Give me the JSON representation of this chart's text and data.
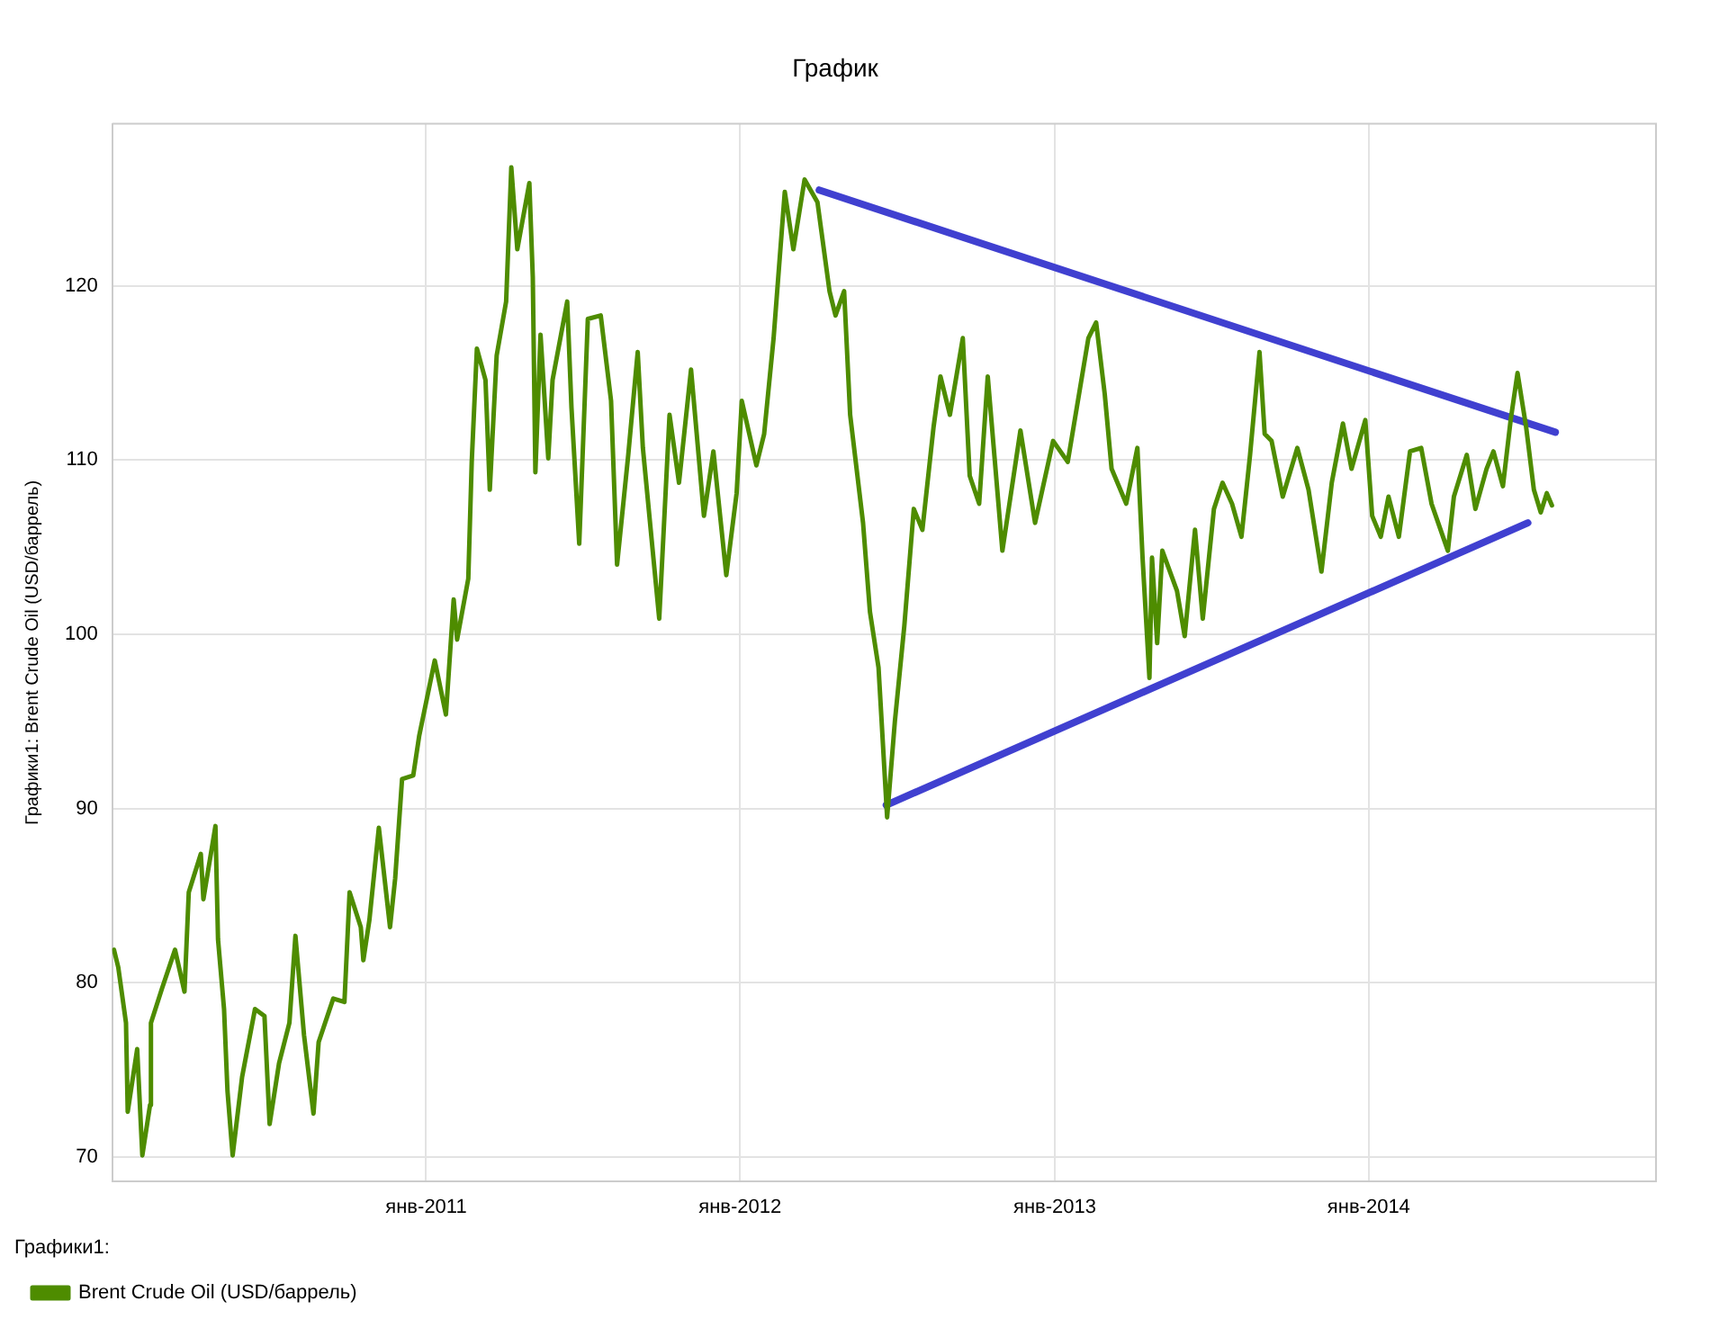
{
  "chart_data": {
    "type": "line",
    "title": "График",
    "ylabel": "Графики1: Brent Crude Oil (USD/баррель)",
    "legend_title": "Графики1:",
    "legend": "bottom left",
    "grid": true,
    "marker": "none",
    "line_style": "solid",
    "xlim": [
      "2010-01-01",
      "2014-12-01"
    ],
    "xticks": [
      {
        "value": "2011-01-01",
        "label": "янв-2011"
      },
      {
        "value": "2012-01-01",
        "label": "янв-2012"
      },
      {
        "value": "2013-01-01",
        "label": "янв-2013"
      },
      {
        "value": "2014-01-01",
        "label": "янв-2014"
      }
    ],
    "ylim": [
      68.6,
      129.3
    ],
    "yticks": [
      70,
      80,
      90,
      100,
      110,
      120
    ],
    "series": [
      {
        "name": "Brent Crude Oil (USD/баррель)",
        "color": "#4e8c00",
        "x": [
          "2010-01-03",
          "2010-01-08",
          "2010-01-17",
          "2010-01-19",
          "2010-01-30",
          "2010-02-05",
          "2010-02-14",
          "2010-02-15",
          "2010-02-28",
          "2010-03-15",
          "2010-03-26",
          "2010-03-31",
          "2010-04-14",
          "2010-04-17",
          "2010-05-01",
          "2010-05-04",
          "2010-05-11",
          "2010-05-15",
          "2010-05-21",
          "2010-06-01",
          "2010-06-16",
          "2010-06-27",
          "2010-07-03",
          "2010-07-14",
          "2010-07-26",
          "2010-08-02",
          "2010-08-12",
          "2010-08-23",
          "2010-08-29",
          "2010-09-15",
          "2010-09-28",
          "2010-10-04",
          "2010-10-17",
          "2010-10-20",
          "2010-10-27",
          "2010-11-07",
          "2010-11-20",
          "2010-11-26",
          "2010-12-04",
          "2010-12-17",
          "2010-12-24",
          "2011-01-11",
          "2011-01-24",
          "2011-02-02",
          "2011-02-06",
          "2011-02-19",
          "2011-02-23",
          "2011-03-01",
          "2011-03-11",
          "2011-03-16",
          "2011-03-24",
          "2011-04-04",
          "2011-04-10",
          "2011-04-17",
          "2011-05-01",
          "2011-05-05",
          "2011-05-08",
          "2011-05-14",
          "2011-05-23",
          "2011-05-28",
          "2011-06-14",
          "2011-06-19",
          "2011-06-28",
          "2011-07-08",
          "2011-07-23",
          "2011-08-04",
          "2011-08-11",
          "2011-08-24",
          "2011-09-04",
          "2011-09-10",
          "2011-09-29",
          "2011-10-11",
          "2011-10-22",
          "2011-11-05",
          "2011-11-20",
          "2011-12-01",
          "2011-12-16",
          "2011-12-28",
          "2012-01-03",
          "2012-01-20",
          "2012-01-29",
          "2012-02-09",
          "2012-02-22",
          "2012-03-03",
          "2012-03-16",
          "2012-03-31",
          "2012-04-14",
          "2012-04-21",
          "2012-05-01",
          "2012-05-08",
          "2012-05-23",
          "2012-05-31",
          "2012-06-10",
          "2012-06-20",
          "2012-06-29",
          "2012-07-10",
          "2012-07-21",
          "2012-07-31",
          "2012-08-13",
          "2012-08-21",
          "2012-09-01",
          "2012-09-16",
          "2012-09-24",
          "2012-10-05",
          "2012-10-15",
          "2012-11-01",
          "2012-11-22",
          "2012-12-09",
          "2012-12-30",
          "2013-01-16",
          "2013-02-09",
          "2013-02-18",
          "2013-02-28",
          "2013-03-08",
          "2013-03-25",
          "2013-04-07",
          "2013-04-13",
          "2013-04-21",
          "2013-04-24",
          "2013-04-30",
          "2013-05-06",
          "2013-05-23",
          "2013-06-01",
          "2013-06-13",
          "2013-06-22",
          "2013-07-05",
          "2013-07-15",
          "2013-07-26",
          "2013-08-06",
          "2013-08-16",
          "2013-08-27",
          "2013-09-02",
          "2013-09-10",
          "2013-09-23",
          "2013-10-10",
          "2013-10-23",
          "2013-11-07",
          "2013-11-19",
          "2013-12-02",
          "2013-12-12",
          "2013-12-28",
          "2014-01-05",
          "2014-01-15",
          "2014-01-24",
          "2014-02-05",
          "2014-02-18",
          "2014-03-03",
          "2014-03-15",
          "2014-04-03",
          "2014-04-10",
          "2014-04-25",
          "2014-05-05",
          "2014-05-18",
          "2014-05-26",
          "2014-06-06",
          "2014-06-15",
          "2014-06-23",
          "2014-07-03",
          "2014-07-12",
          "2014-07-20",
          "2014-07-27",
          "2014-08-02"
        ],
        "values": [
          81.9,
          80.9,
          77.7,
          72.6,
          76.2,
          70.1,
          73,
          77.7,
          79.7,
          81.9,
          79.5,
          85.2,
          87.4,
          84.8,
          89,
          82.5,
          78.5,
          73.8,
          70.1,
          74.6,
          78.5,
          78.1,
          71.9,
          75.4,
          77.7,
          82.7,
          77,
          72.5,
          76.6,
          79.1,
          78.9,
          85.2,
          83.2,
          81.3,
          83.6,
          88.9,
          83.2,
          86,
          91.7,
          91.9,
          94.2,
          98.5,
          95.4,
          102,
          99.7,
          103.2,
          109.9,
          116.4,
          114.6,
          108.3,
          116,
          119.1,
          126.8,
          122.1,
          125.9,
          120.5,
          109.3,
          117.2,
          110.1,
          114.6,
          119.1,
          113,
          105.2,
          118.1,
          118.3,
          113.4,
          104,
          110.3,
          116.2,
          110.7,
          100.9,
          112.6,
          108.7,
          115.2,
          106.8,
          110.5,
          103.4,
          108.1,
          113.4,
          109.7,
          111.5,
          117,
          125.4,
          122.1,
          126.1,
          124.8,
          119.7,
          118.3,
          119.7,
          112.6,
          106.4,
          101.3,
          98.1,
          89.5,
          95,
          100.5,
          107.2,
          106,
          111.9,
          114.8,
          112.6,
          117,
          109.1,
          107.5,
          114.8,
          104.8,
          111.7,
          106.4,
          111.1,
          109.9,
          117,
          117.9,
          113.8,
          109.5,
          107.5,
          110.7,
          104.4,
          97.5,
          104.4,
          99.5,
          104.8,
          102.5,
          99.9,
          106,
          100.9,
          107.2,
          108.7,
          107.5,
          105.6,
          110.3,
          116.2,
          111.5,
          111.1,
          107.9,
          110.7,
          108.3,
          103.6,
          108.7,
          112.1,
          109.5,
          112.3,
          106.8,
          105.6,
          107.9,
          105.6,
          110.5,
          110.7,
          107.5,
          104.8,
          107.9,
          110.3,
          107.2,
          109.5,
          110.5,
          108.5,
          112.3,
          115,
          111.9,
          108.3,
          107,
          108.1,
          107.4
        ]
      },
      {
        "type": "line",
        "color": "#4040d0",
        "x": [
          "2012-04-02",
          "2014-08-06"
        ],
        "values": [
          125.5,
          111.6
        ]
      },
      {
        "type": "line",
        "color": "#4040d0",
        "x": [
          "2012-06-19",
          "2014-07-05"
        ],
        "values": [
          90.2,
          106.4
        ]
      }
    ]
  }
}
